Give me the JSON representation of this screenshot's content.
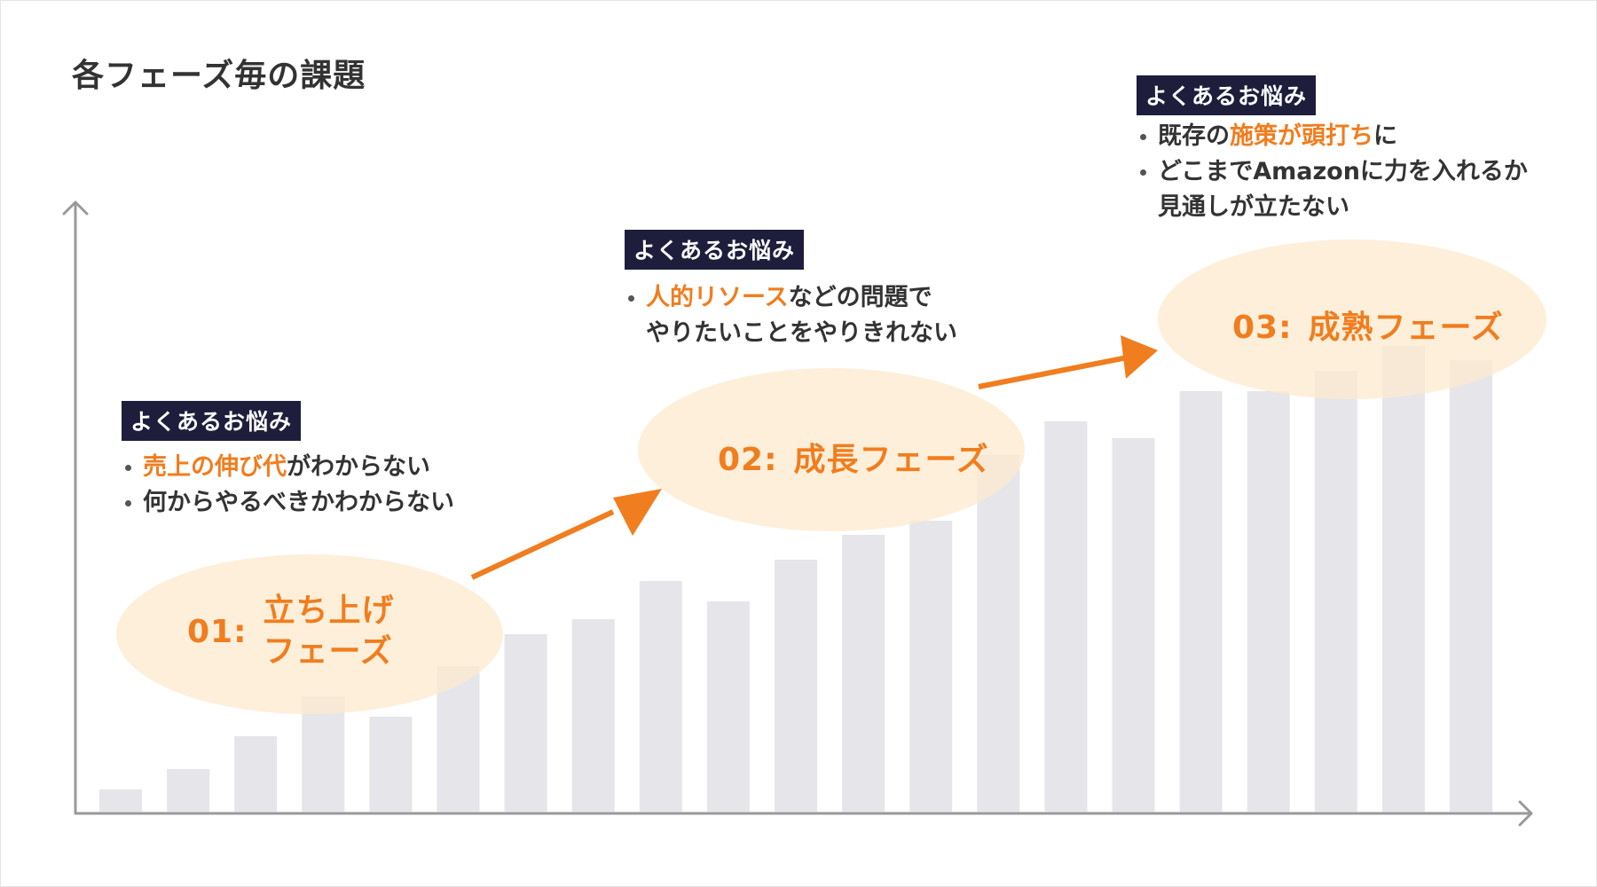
{
  "title": "各フェーズ毎の課題",
  "colors": {
    "accent": "#f07d1e",
    "ellipse": "#fde9cf",
    "bar": "#e5e5ea",
    "badge_bg": "#1e1e3c",
    "axis": "#999999"
  },
  "chart_data": {
    "type": "bar",
    "values": [
      25,
      48,
      85,
      130,
      107,
      164,
      200,
      217,
      260,
      237,
      284,
      312,
      328,
      402,
      440,
      421,
      474,
      474,
      497,
      525,
      509
    ],
    "xlabel": "",
    "ylabel": "",
    "ylim": [
      0,
      700
    ],
    "grid": false
  },
  "phases": [
    {
      "id": "01",
      "number": "01:",
      "name_lines": [
        "立ち上げ",
        "フェーズ"
      ],
      "badge": "よくあるお悩み",
      "bullets": [
        [
          {
            "text": "売上の伸び代",
            "hl": true
          },
          {
            "text": "がわからない",
            "hl": false
          }
        ],
        [
          {
            "text": "何からやるべきかわからない",
            "hl": false
          }
        ]
      ]
    },
    {
      "id": "02",
      "number": "02:",
      "name_lines": [
        "成長フェーズ"
      ],
      "badge": "よくあるお悩み",
      "bullets": [
        [
          {
            "text": "人的リソース",
            "hl": true
          },
          {
            "text": "などの問題で",
            "hl": false
          },
          {
            "text": "やりたいことをやりきれない",
            "hl": false,
            "br": true
          }
        ]
      ]
    },
    {
      "id": "03",
      "number": "03:",
      "name_lines": [
        "成熟フェーズ"
      ],
      "badge": "よくあるお悩み",
      "bullets": [
        [
          {
            "text": "既存の",
            "hl": false
          },
          {
            "text": "施策が頭打ち",
            "hl": true
          },
          {
            "text": "に",
            "hl": false
          }
        ],
        [
          {
            "text": "どこまでAmazonに力を入れるか",
            "hl": false
          },
          {
            "text": "見通しが立たない",
            "hl": false,
            "br": true
          }
        ]
      ]
    }
  ]
}
